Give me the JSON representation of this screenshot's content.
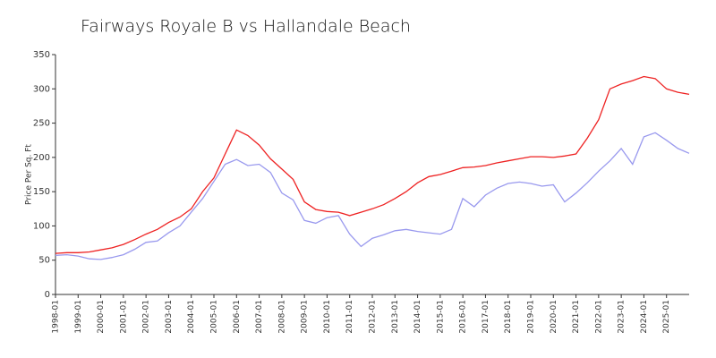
{
  "chart_data": {
    "type": "line",
    "title": "Fairways Royale B vs Hallandale Beach",
    "y_label": "Price Per Sq. Ft",
    "x": [
      "1998-01",
      null,
      "1999-01",
      null,
      "2000-01",
      null,
      "2001-01",
      null,
      "2002-01",
      null,
      "2003-01",
      null,
      "2004-01",
      null,
      "2005-01",
      null,
      "2006-01",
      null,
      "2007-01",
      null,
      "2008-01",
      null,
      "2009-01",
      null,
      "2010-01",
      null,
      "2011-01",
      null,
      "2012-01",
      null,
      "2013-01",
      null,
      "2014-01",
      null,
      "2015-01",
      null,
      "2016-01",
      null,
      "2017-01",
      null,
      "2018-01",
      null,
      "2019-01",
      null,
      "2020-01",
      null,
      "2021-01",
      null,
      "2022-01",
      null,
      "2023-01",
      null,
      "2024-01",
      null,
      "2025-01",
      null,
      null
    ],
    "series": [
      {
        "color": "#ee2222",
        "values": [
          60,
          61,
          61,
          62,
          65,
          68,
          73,
          80,
          88,
          95,
          105,
          113,
          125,
          150,
          170,
          205,
          240,
          232,
          218,
          198,
          183,
          168,
          135,
          124,
          121,
          120,
          115,
          120,
          125,
          131,
          140,
          150,
          163,
          172,
          175,
          180,
          185,
          186,
          188,
          192,
          195,
          198,
          201,
          201,
          200,
          202,
          205,
          228,
          255,
          300,
          307,
          312,
          318,
          315,
          300,
          295,
          292
        ]
      },
      {
        "color": "#9999ee",
        "values": [
          57,
          58,
          56,
          52,
          51,
          54,
          58,
          66,
          76,
          78,
          90,
          100,
          120,
          140,
          165,
          190,
          197,
          188,
          190,
          178,
          148,
          138,
          108,
          104,
          112,
          115,
          88,
          70,
          82,
          87,
          93,
          95,
          92,
          90,
          88,
          95,
          140,
          128,
          145,
          155,
          162,
          164,
          162,
          158,
          160,
          135,
          148,
          163,
          180,
          195,
          213,
          190,
          230,
          236,
          225,
          213,
          206
        ]
      }
    ],
    "ylim": [
      0,
      350
    ],
    "yticks": [
      0,
      50,
      100,
      150,
      200,
      250,
      300,
      350
    ],
    "grid": false
  }
}
